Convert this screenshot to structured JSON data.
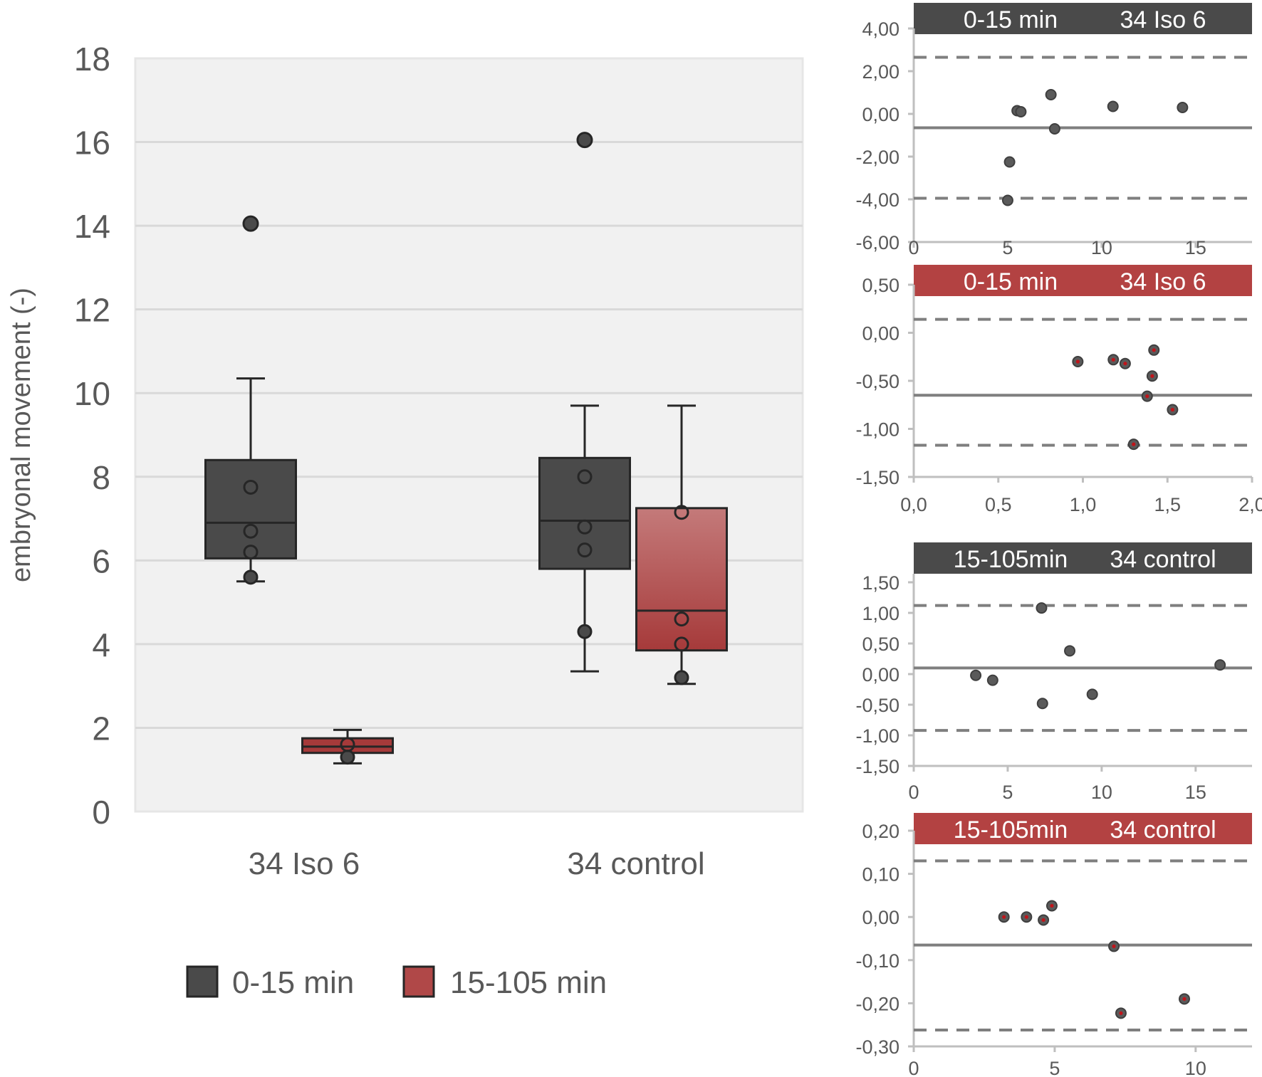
{
  "colors": {
    "dark": "#4a4a4a",
    "dark_stroke": "#262626",
    "red": "#a63a3a",
    "red_light": "#c47a7a",
    "red_legend": "#b04848",
    "red_header": "#b34242",
    "panel_bg": "#f1f1f1",
    "grid": "#d9d9d9",
    "axis": "#bfbfbf",
    "text": "#595959",
    "ref_line": "#7f7f7f"
  },
  "chart_data": [
    {
      "type": "box",
      "ylabel": "embryonal movement (-)",
      "ylim": [
        0,
        18
      ],
      "yticks": [
        0,
        2,
        4,
        6,
        8,
        10,
        12,
        14,
        16,
        18
      ],
      "categories": [
        "34 Iso 6",
        "34 control"
      ],
      "grid": true,
      "legend_position": "bottom",
      "legend": [
        "0-15 min",
        "15-105 min"
      ],
      "series": [
        {
          "name": "0-15 min",
          "color": "#4a4a4a",
          "boxes": [
            {
              "category": "34 Iso 6",
              "q1": 6.05,
              "median": 6.9,
              "q3": 8.4,
              "whisker_low": 5.5,
              "whisker_high": 10.35,
              "points": [
                5.6,
                6.2,
                6.7,
                7.75
              ],
              "outliers": [
                14.05
              ]
            },
            {
              "category": "34 control",
              "q1": 5.8,
              "median": 6.95,
              "q3": 8.45,
              "whisker_low": 3.35,
              "whisker_high": 9.7,
              "points": [
                4.3,
                6.25,
                6.8,
                8.0
              ],
              "outliers": [
                16.05
              ]
            }
          ]
        },
        {
          "name": "15-105 min",
          "color": "#a63a3a",
          "boxes": [
            {
              "category": "34 Iso 6",
              "q1": 1.4,
              "median": 1.55,
              "q3": 1.75,
              "whisker_low": 1.15,
              "whisker_high": 1.95,
              "points": [
                1.3,
                1.6
              ],
              "outliers": []
            },
            {
              "category": "34 control",
              "q1": 3.85,
              "median": 4.8,
              "q3": 7.25,
              "whisker_low": 3.05,
              "whisker_high": 9.7,
              "points": [
                3.2,
                4.0,
                4.6,
                7.15
              ],
              "outliers": []
            }
          ]
        }
      ]
    },
    {
      "type": "scatter",
      "header_left": "0-15 min",
      "header_right": "34 Iso 6",
      "header_color": "dark",
      "marker": "dark",
      "xlim": [
        0,
        18
      ],
      "xticks": [
        0,
        5,
        10,
        15
      ],
      "xtick_labels": [
        "0",
        "5",
        "10",
        "15"
      ],
      "ylim": [
        -6,
        4
      ],
      "yticks": [
        -6,
        -4,
        -2,
        0,
        2,
        4
      ],
      "ytick_labels": [
        "-6,00",
        "-4,00",
        "-2,00",
        "0,00",
        "2,00",
        "4,00"
      ],
      "mean": -0.65,
      "upper_loa": 2.65,
      "lower_loa": -3.95,
      "x": [
        5.0,
        5.1,
        5.5,
        5.7,
        7.3,
        7.5,
        10.6,
        14.3
      ],
      "y": [
        -4.05,
        -2.25,
        0.15,
        0.1,
        0.9,
        -0.7,
        0.35,
        0.3
      ]
    },
    {
      "type": "scatter",
      "header_left": "0-15 min",
      "header_right": "34 Iso 6",
      "header_color": "red",
      "marker": "red",
      "xlim": [
        0,
        2
      ],
      "xticks": [
        0,
        0.5,
        1,
        1.5,
        2
      ],
      "xtick_labels": [
        "0,0",
        "0,5",
        "1,0",
        "1,5",
        "2,0"
      ],
      "ylim": [
        -1.5,
        0.5
      ],
      "yticks": [
        -1.5,
        -1,
        -0.5,
        0,
        0.5
      ],
      "ytick_labels": [
        "-1,50",
        "-1,00",
        "-0,50",
        "0,00",
        "0,50"
      ],
      "mean": -0.65,
      "upper_loa": 0.14,
      "lower_loa": -1.17,
      "x": [
        0.97,
        1.18,
        1.25,
        1.3,
        1.38,
        1.41,
        1.42,
        1.53
      ],
      "y": [
        -0.3,
        -0.28,
        -0.32,
        -1.16,
        -0.66,
        -0.45,
        -0.18,
        -0.8
      ]
    },
    {
      "type": "scatter",
      "header_left": "15-105min",
      "header_right": "34 control",
      "header_color": "dark",
      "marker": "dark",
      "xlim": [
        0,
        18
      ],
      "xticks": [
        0,
        5,
        10,
        15
      ],
      "xtick_labels": [
        "0",
        "5",
        "10",
        "15"
      ],
      "ylim": [
        -1.5,
        1.5
      ],
      "yticks": [
        -1.5,
        -1,
        -0.5,
        0,
        0.5,
        1,
        1.5
      ],
      "ytick_labels": [
        "-1,50",
        "-1,00",
        "-0,50",
        "0,00",
        "0,50",
        "1,00",
        "1,50"
      ],
      "mean": 0.1,
      "upper_loa": 1.12,
      "lower_loa": -0.92,
      "x": [
        3.3,
        4.2,
        6.8,
        6.85,
        8.3,
        9.5,
        16.3
      ],
      "y": [
        -0.02,
        -0.1,
        1.08,
        -0.48,
        0.38,
        -0.33,
        0.15
      ]
    },
    {
      "type": "scatter",
      "header_left": "15-105min",
      "header_right": "34 control",
      "header_color": "red",
      "marker": "red",
      "xlim": [
        0,
        12
      ],
      "xticks": [
        0,
        5,
        10
      ],
      "xtick_labels": [
        "0",
        "5",
        "10"
      ],
      "ylim": [
        -0.3,
        0.2
      ],
      "yticks": [
        -0.3,
        -0.2,
        -0.1,
        0,
        0.1,
        0.2
      ],
      "ytick_labels": [
        "-0,30",
        "-0,20",
        "-0,10",
        "0,00",
        "0,10",
        "0,20"
      ],
      "mean": -0.065,
      "upper_loa": 0.13,
      "lower_loa": -0.262,
      "x": [
        3.2,
        4.0,
        4.6,
        4.9,
        7.1,
        7.35,
        9.6
      ],
      "y": [
        0.0,
        0.0,
        -0.007,
        0.026,
        -0.068,
        -0.223,
        -0.19
      ]
    }
  ]
}
